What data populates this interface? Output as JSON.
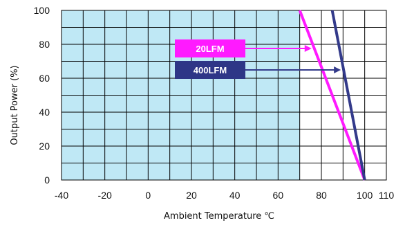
{
  "chart_data": {
    "type": "line",
    "xlabel": "Ambient Temperature ℃",
    "ylabel": "Output Power (%)",
    "xlim": [
      -40,
      110
    ],
    "ylim": [
      0,
      100
    ],
    "x_ticks": [
      "-40",
      "-20",
      "0",
      "20",
      "40",
      "60",
      "80",
      "100",
      "110"
    ],
    "y_ticks": [
      "0",
      "20",
      "40",
      "60",
      "80",
      "100"
    ],
    "grid": true,
    "shaded_region": {
      "x": [
        -40,
        70
      ],
      "color": "#bfe8f5"
    },
    "series": [
      {
        "name": "20LFM",
        "color": "#ff1aff",
        "label_bg": "#ff1aff",
        "x": [
          70,
          100
        ],
        "y": [
          100,
          0
        ]
      },
      {
        "name": "400LFM",
        "color": "#333a8a",
        "label_bg": "#2e3687",
        "x": [
          85,
          100
        ],
        "y": [
          100,
          0
        ]
      }
    ]
  }
}
